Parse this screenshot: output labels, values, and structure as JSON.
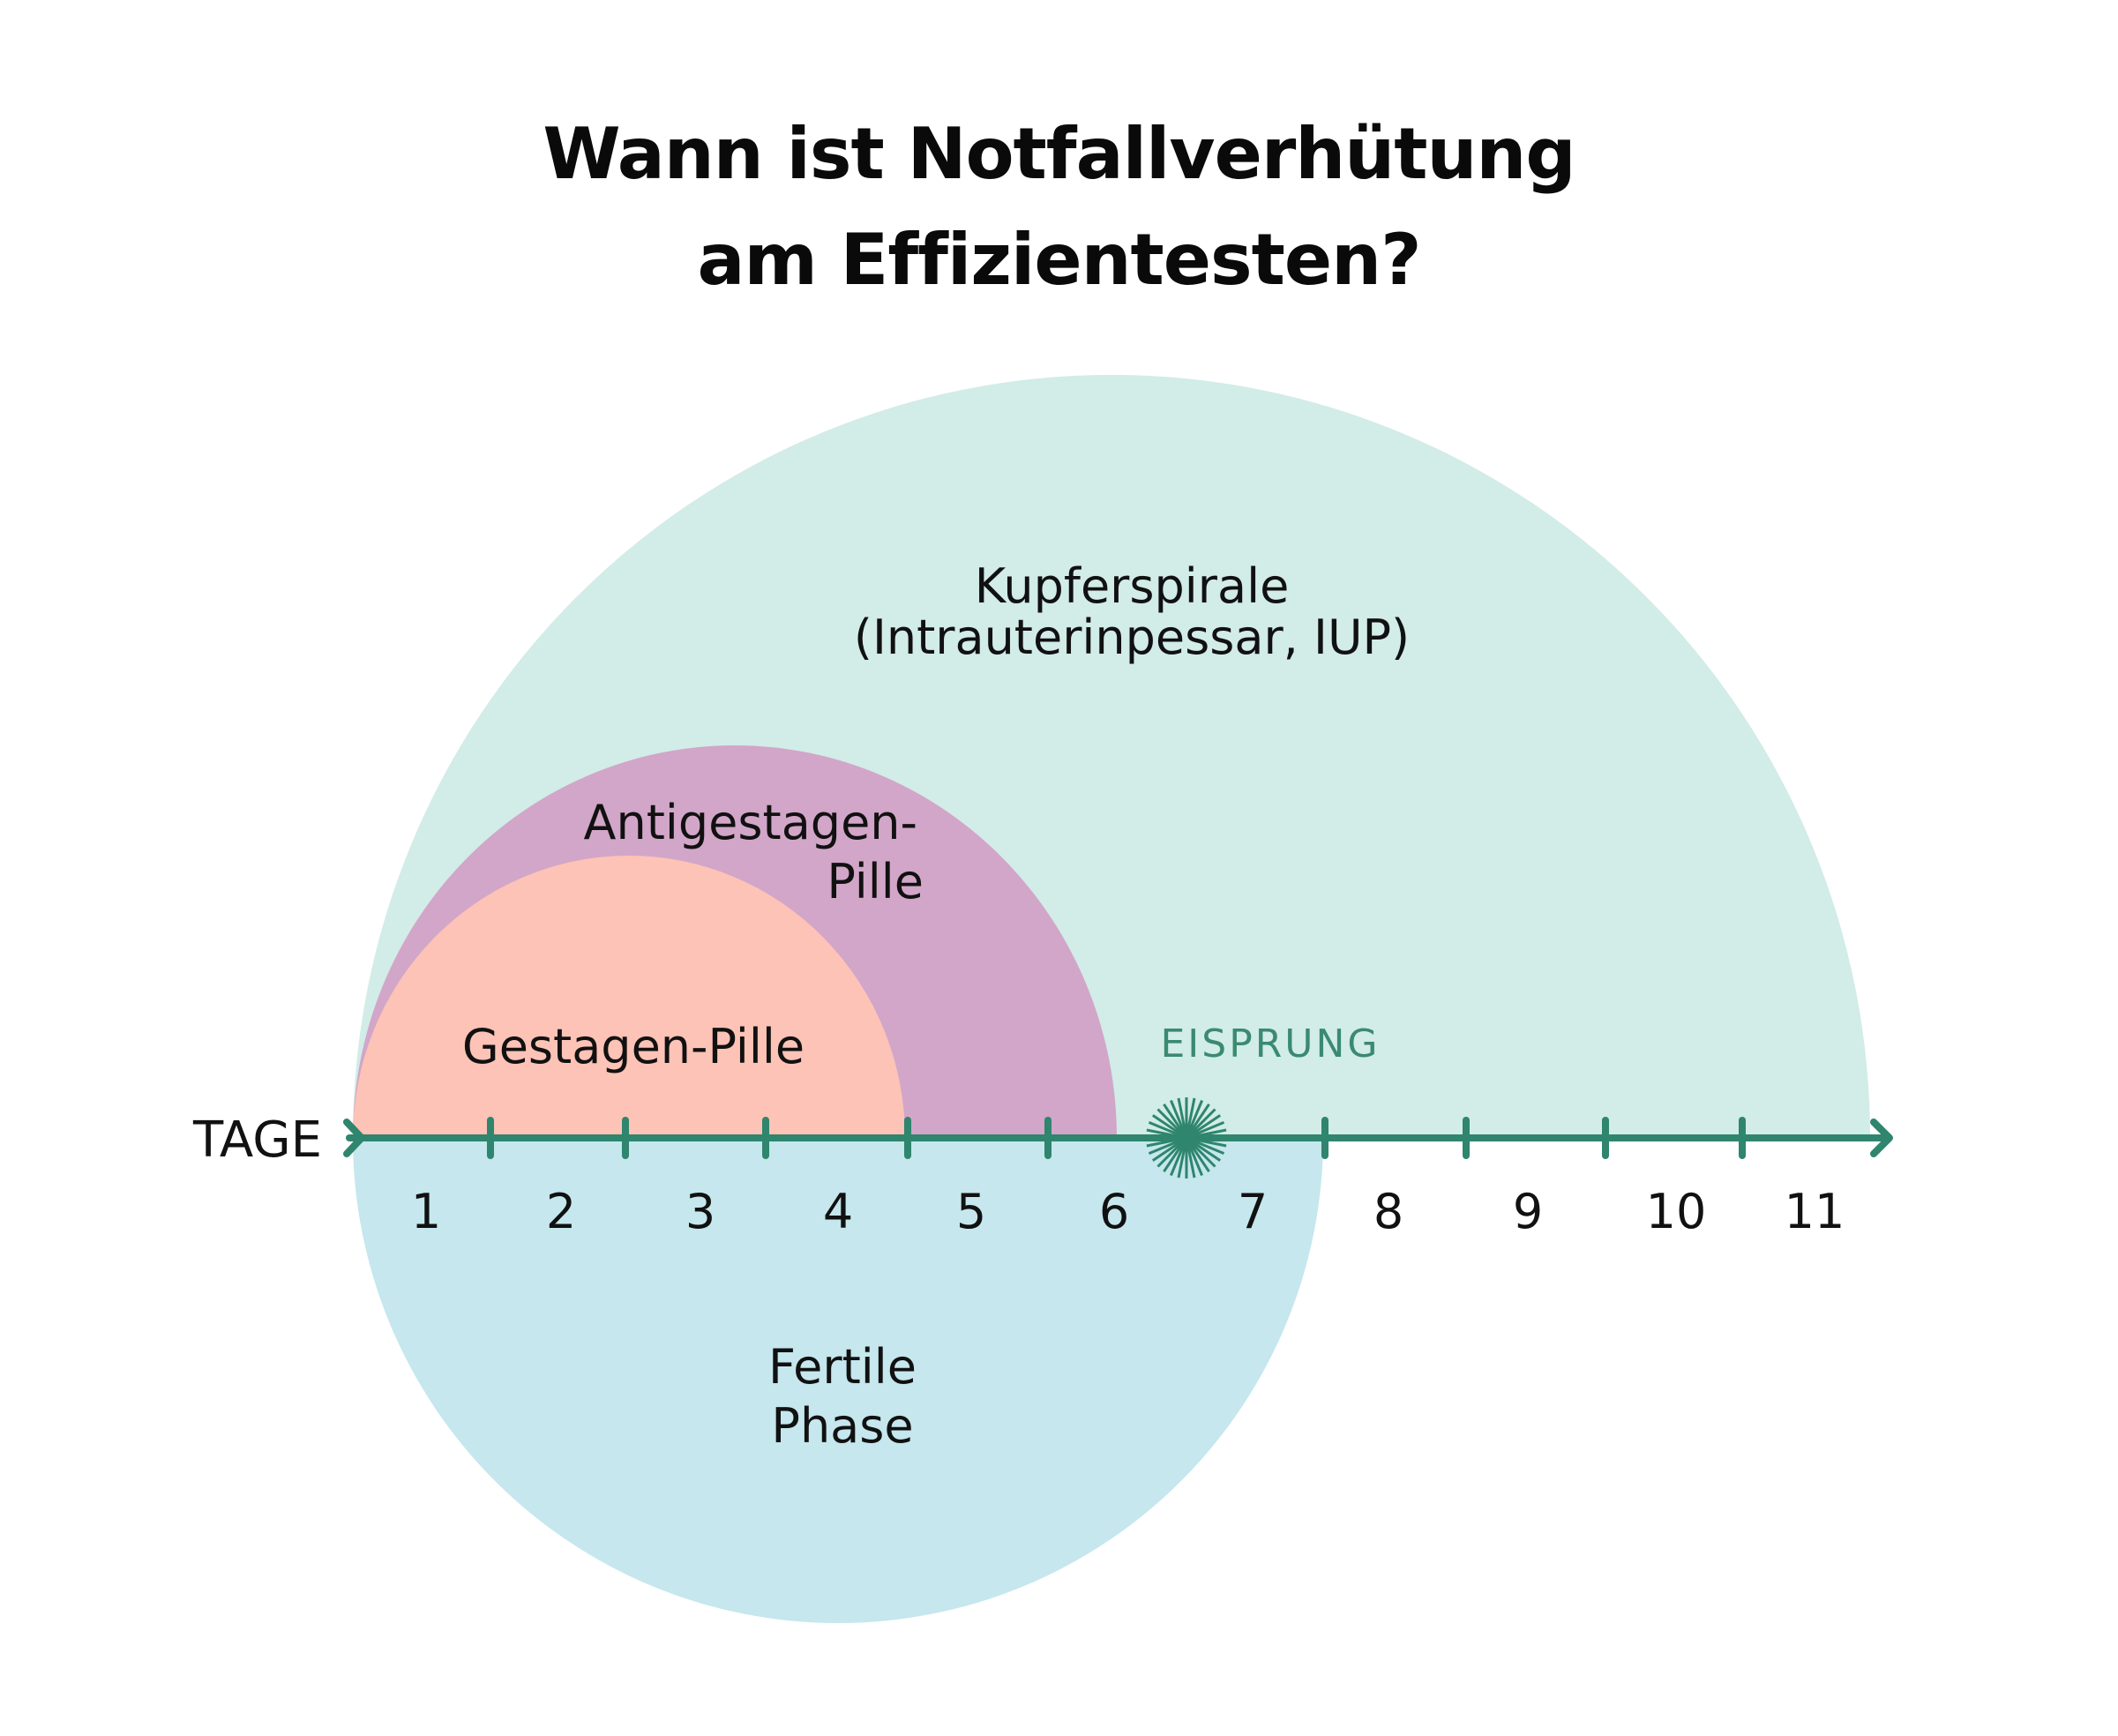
{
  "title": {
    "line1": "Wann ist Notfallverhütung",
    "line2": "am Effizientesten?"
  },
  "axis": {
    "label": "TAGE",
    "days": [
      "1",
      "2",
      "3",
      "4",
      "5",
      "6",
      "7",
      "8",
      "9",
      "10",
      "11"
    ]
  },
  "regions": {
    "kupferspirale": {
      "line1": "Kupferspirale",
      "line2": "(Intrauterinpessar, IUP)",
      "color": "#d2ece7"
    },
    "antigestagen": {
      "line1": "Antigestagen-",
      "line2": "Pille",
      "color": "#d2a6c8"
    },
    "gestagen": {
      "label": "Gestagen-Pille",
      "color": "#fcc3b6"
    },
    "fertile": {
      "line1": "Fertile",
      "line2": "Phase",
      "color": "#c5e7ed"
    }
  },
  "ovulation": {
    "label": "EISPRUNG",
    "color": "#3a8a70"
  },
  "colors": {
    "axis": "#2f856d",
    "text": "#111111"
  }
}
